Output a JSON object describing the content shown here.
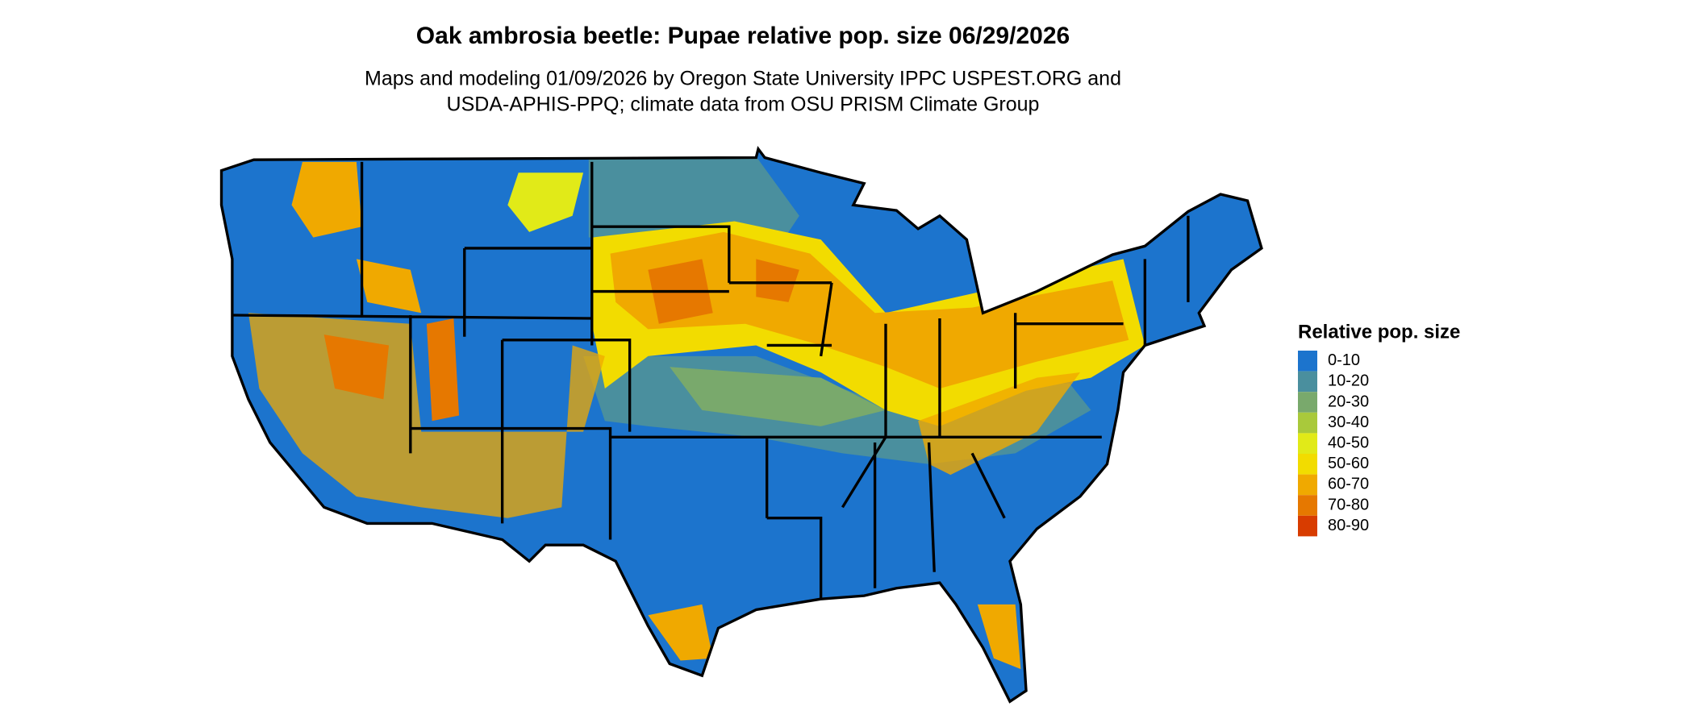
{
  "title": "Oak ambrosia beetle: Pupae relative pop. size 06/29/2026",
  "subtitle_lines": [
    "Maps and modeling 01/09/2026 by Oregon State University IPPC USPEST.ORG and",
    "USDA-APHIS-PPQ; climate data from OSU PRISM Climate Group"
  ],
  "legend": {
    "title": "Relative pop. size",
    "items": [
      {
        "label": "0-10",
        "color": "#1c74cd"
      },
      {
        "label": "10-20",
        "color": "#4a8f9e"
      },
      {
        "label": "20-30",
        "color": "#79a96c"
      },
      {
        "label": "30-40",
        "color": "#a9c93b"
      },
      {
        "label": "40-50",
        "color": "#e1ea18"
      },
      {
        "label": "50-60",
        "color": "#f2dc00"
      },
      {
        "label": "60-70",
        "color": "#f0a900"
      },
      {
        "label": "70-80",
        "color": "#e67800"
      },
      {
        "label": "80-90",
        "color": "#d83c00"
      }
    ]
  }
}
